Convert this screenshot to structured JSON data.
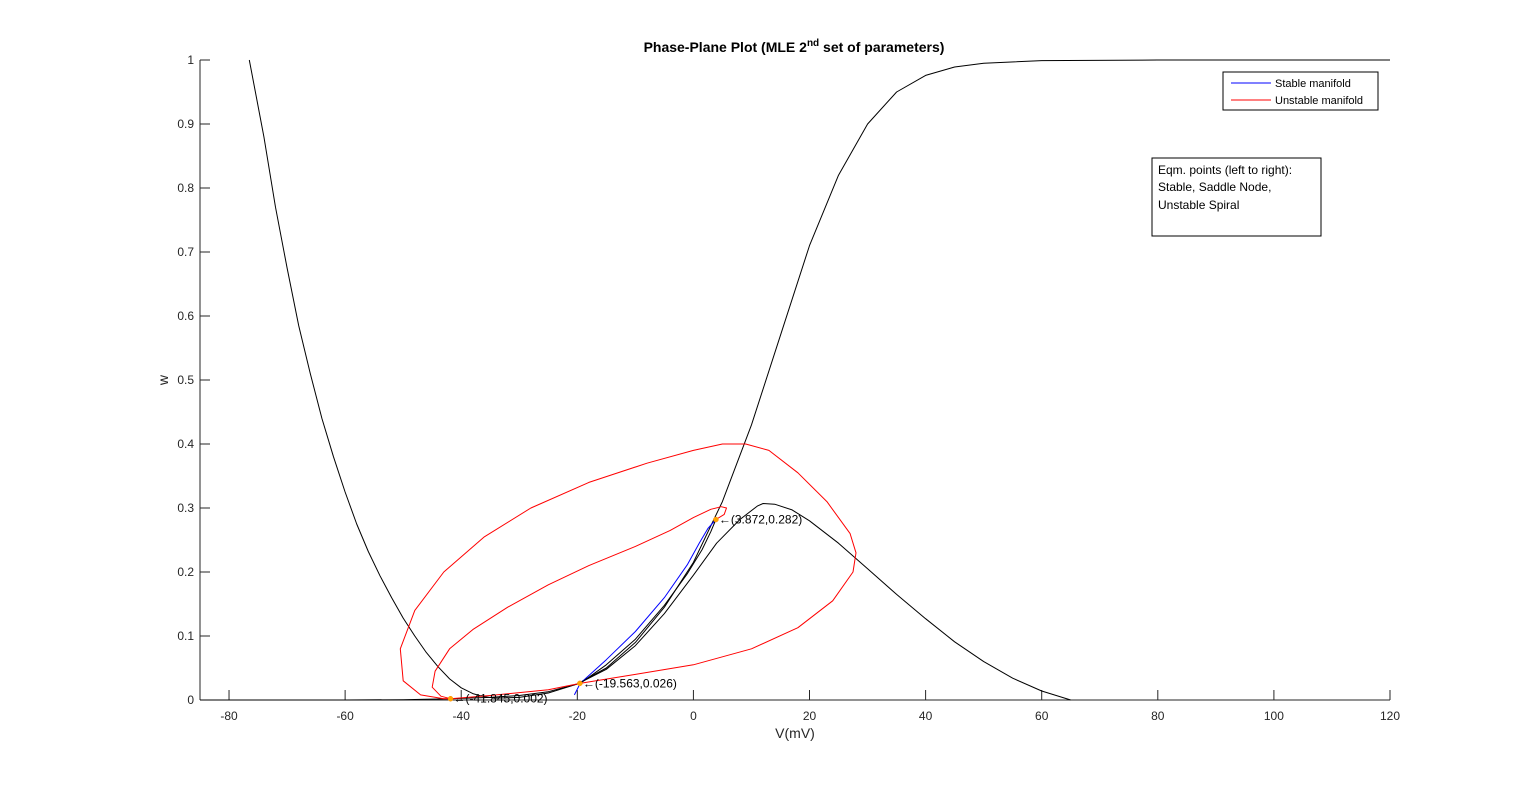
{
  "chart_data": {
    "type": "line",
    "title_main": "Phase-Plane Plot (MLE 2",
    "title_sup": "nd",
    "title_tail": " set of parameters)",
    "xlabel": "V(mV)",
    "ylabel": "w",
    "xlim": [
      -85,
      120
    ],
    "ylim": [
      0,
      1
    ],
    "xticks": [
      -80,
      -60,
      -40,
      -20,
      0,
      20,
      40,
      60,
      80,
      100,
      120
    ],
    "yticks": [
      0,
      0.1,
      0.2,
      0.3,
      0.4,
      0.5,
      0.6,
      0.7,
      0.8,
      0.9,
      1
    ],
    "ytick_labels": [
      "0",
      "0.1",
      "0.2",
      "0.3",
      "0.4",
      "0.5",
      "0.6",
      "0.7",
      "0.8",
      "0.9",
      "1"
    ],
    "legend": {
      "position": "top-right",
      "entries": [
        {
          "name": "Stable manifold",
          "color": "#0000ff"
        },
        {
          "name": "Unstable manifold",
          "color": "#ff0000"
        }
      ]
    },
    "info_box": {
      "lines": [
        "Eqm. points (left to right):",
        "Stable, Saddle Node,",
        "Unstable Spiral"
      ]
    },
    "equilibria": [
      {
        "V": -41.845,
        "w": 0.002,
        "label": "←(-41.845,0.002)"
      },
      {
        "V": -19.563,
        "w": 0.026,
        "label": "←(-19.563,0.026)"
      },
      {
        "V": 3.872,
        "w": 0.282,
        "label": "←(3.872,0.282)"
      }
    ],
    "series": [
      {
        "color": "#000000",
        "points": [
          [
            -76.5,
            1.0
          ],
          [
            -74,
            0.88
          ],
          [
            -72,
            0.77
          ],
          [
            -70,
            0.675
          ],
          [
            -68,
            0.585
          ],
          [
            -66,
            0.51
          ],
          [
            -64,
            0.44
          ],
          [
            -62,
            0.38
          ],
          [
            -60,
            0.325
          ],
          [
            -58,
            0.275
          ],
          [
            -56,
            0.232
          ],
          [
            -54,
            0.194
          ],
          [
            -52,
            0.16
          ],
          [
            -50,
            0.128
          ],
          [
            -48,
            0.1
          ],
          [
            -46,
            0.074
          ],
          [
            -44,
            0.052
          ],
          [
            -42,
            0.033
          ],
          [
            -40,
            0.019
          ],
          [
            -38,
            0.01
          ],
          [
            -36,
            0.005
          ],
          [
            -34,
            0.003
          ],
          [
            -30,
            0.004
          ],
          [
            -25,
            0.011
          ],
          [
            -20,
            0.025
          ],
          [
            -15,
            0.048
          ],
          [
            -10,
            0.085
          ],
          [
            -5,
            0.135
          ],
          [
            0,
            0.195
          ],
          [
            4,
            0.245
          ],
          [
            8,
            0.282
          ],
          [
            11,
            0.303
          ],
          [
            12,
            0.307
          ],
          [
            14,
            0.306
          ],
          [
            17,
            0.297
          ],
          [
            20,
            0.28
          ],
          [
            25,
            0.245
          ],
          [
            30,
            0.205
          ],
          [
            35,
            0.165
          ],
          [
            40,
            0.127
          ],
          [
            45,
            0.091
          ],
          [
            50,
            0.06
          ],
          [
            55,
            0.034
          ],
          [
            60,
            0.014
          ],
          [
            65,
            0.0
          ]
        ]
      },
      {
        "color": "#000000",
        "points": [
          [
            -85,
            0.0
          ],
          [
            -60,
            0.0
          ],
          [
            -50,
            0.0005
          ],
          [
            -42,
            0.002
          ],
          [
            -35,
            0.004
          ],
          [
            -30,
            0.007
          ],
          [
            -25,
            0.013
          ],
          [
            -20,
            0.025
          ],
          [
            -15,
            0.05
          ],
          [
            -10,
            0.09
          ],
          [
            -5,
            0.145
          ],
          [
            0,
            0.215
          ],
          [
            5,
            0.31
          ],
          [
            10,
            0.43
          ],
          [
            15,
            0.57
          ],
          [
            20,
            0.71
          ],
          [
            25,
            0.82
          ],
          [
            30,
            0.9
          ],
          [
            35,
            0.95
          ],
          [
            40,
            0.976
          ],
          [
            45,
            0.989
          ],
          [
            50,
            0.995
          ],
          [
            60,
            0.999
          ],
          [
            80,
            1.0
          ],
          [
            120,
            1.0
          ]
        ]
      },
      {
        "color": "#0000ff",
        "points": [
          [
            -20.5,
            0.008
          ],
          [
            -19.5,
            0.026
          ],
          [
            -15,
            0.063
          ],
          [
            -10,
            0.107
          ],
          [
            -5,
            0.16
          ],
          [
            -1,
            0.212
          ],
          [
            1,
            0.245
          ],
          [
            2.5,
            0.268
          ],
          [
            3.872,
            0.282
          ]
        ]
      },
      {
        "color": "#000000",
        "points": [
          [
            -19.5,
            0.026
          ],
          [
            -15,
            0.055
          ],
          [
            -10,
            0.095
          ],
          [
            -5,
            0.148
          ],
          [
            -1,
            0.198
          ],
          [
            1.5,
            0.235
          ],
          [
            3,
            0.263
          ],
          [
            3.872,
            0.282
          ]
        ]
      },
      {
        "color": "#ff0000",
        "points": [
          [
            3.872,
            0.282
          ],
          [
            5.3,
            0.29
          ],
          [
            5.7,
            0.3
          ],
          [
            4.8,
            0.302
          ],
          [
            3,
            0.298
          ],
          [
            0,
            0.285
          ],
          [
            -4,
            0.265
          ],
          [
            -10,
            0.24
          ],
          [
            -18,
            0.21
          ],
          [
            -25,
            0.18
          ],
          [
            -32,
            0.145
          ],
          [
            -38,
            0.11
          ],
          [
            -42,
            0.08
          ],
          [
            -44.5,
            0.045
          ],
          [
            -45,
            0.02
          ],
          [
            -43.5,
            0.006
          ],
          [
            -41.845,
            0.002
          ],
          [
            -35,
            0.007
          ],
          [
            -25,
            0.016
          ],
          [
            -19.563,
            0.026
          ],
          [
            -10,
            0.04
          ],
          [
            0,
            0.055
          ],
          [
            10,
            0.08
          ],
          [
            18,
            0.113
          ],
          [
            24,
            0.155
          ],
          [
            27.5,
            0.2
          ],
          [
            28,
            0.23
          ],
          [
            27,
            0.26
          ],
          [
            23,
            0.31
          ],
          [
            18,
            0.355
          ],
          [
            13,
            0.39
          ],
          [
            9,
            0.4
          ],
          [
            5,
            0.4
          ],
          [
            0,
            0.39
          ],
          [
            -8,
            0.37
          ],
          [
            -18,
            0.34
          ],
          [
            -28,
            0.3
          ],
          [
            -36,
            0.255
          ],
          [
            -43,
            0.2
          ],
          [
            -48,
            0.14
          ],
          [
            -50.5,
            0.08
          ],
          [
            -50,
            0.03
          ],
          [
            -47,
            0.008
          ],
          [
            -43,
            0.002
          ],
          [
            -41.845,
            0.002
          ]
        ]
      }
    ]
  }
}
